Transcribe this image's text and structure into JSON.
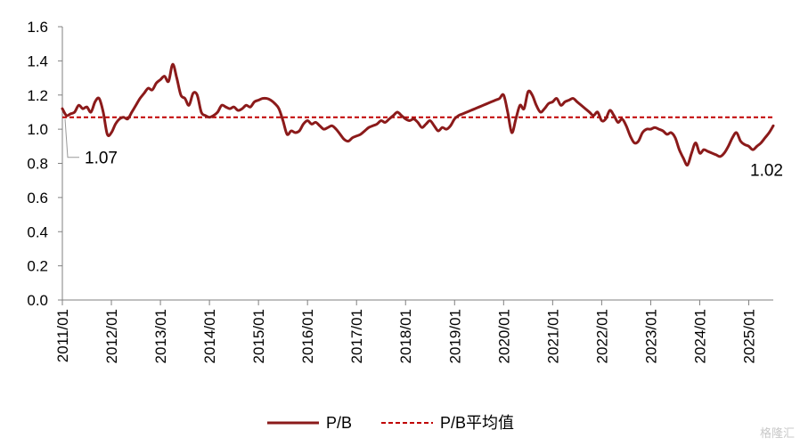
{
  "chart_data": {
    "type": "line",
    "x_start": "2011/01",
    "x_end": "2025/07",
    "xlim": [
      "2011/01",
      "2025/07"
    ],
    "ylim": [
      0,
      1.6
    ],
    "y_ticks": [
      "0.0",
      "0.2",
      "0.4",
      "0.6",
      "0.8",
      "1.0",
      "1.2",
      "1.4",
      "1.6"
    ],
    "x_ticks": [
      "2011/01",
      "2012/01",
      "2013/01",
      "2014/01",
      "2015/01",
      "2016/01",
      "2017/01",
      "2018/01",
      "2019/01",
      "2020/01",
      "2021/01",
      "2022/01",
      "2023/01",
      "2024/01",
      "2025/01"
    ],
    "grid": false,
    "legend_position": "bottom",
    "series": [
      {
        "name": "P/B",
        "color": "#8B1A1A",
        "style": "solid",
        "points": [
          [
            "2011/01",
            1.12
          ],
          [
            "2011/02",
            1.08
          ],
          [
            "2011/03",
            1.09
          ],
          [
            "2011/04",
            1.1
          ],
          [
            "2011/05",
            1.14
          ],
          [
            "2011/06",
            1.12
          ],
          [
            "2011/07",
            1.13
          ],
          [
            "2011/08",
            1.1
          ],
          [
            "2011/09",
            1.16
          ],
          [
            "2011/10",
            1.18
          ],
          [
            "2011/11",
            1.1
          ],
          [
            "2011/12",
            0.97
          ],
          [
            "2012/01",
            0.98
          ],
          [
            "2012/02",
            1.03
          ],
          [
            "2012/03",
            1.06
          ],
          [
            "2012/04",
            1.07
          ],
          [
            "2012/05",
            1.06
          ],
          [
            "2012/06",
            1.1
          ],
          [
            "2012/07",
            1.14
          ],
          [
            "2012/08",
            1.18
          ],
          [
            "2012/09",
            1.21
          ],
          [
            "2012/10",
            1.24
          ],
          [
            "2012/11",
            1.23
          ],
          [
            "2012/12",
            1.27
          ],
          [
            "2013/01",
            1.29
          ],
          [
            "2013/02",
            1.31
          ],
          [
            "2013/03",
            1.28
          ],
          [
            "2013/04",
            1.38
          ],
          [
            "2013/05",
            1.3
          ],
          [
            "2013/06",
            1.2
          ],
          [
            "2013/07",
            1.18
          ],
          [
            "2013/08",
            1.14
          ],
          [
            "2013/09",
            1.21
          ],
          [
            "2013/10",
            1.2
          ],
          [
            "2013/11",
            1.1
          ],
          [
            "2013/12",
            1.08
          ],
          [
            "2014/01",
            1.07
          ],
          [
            "2014/02",
            1.08
          ],
          [
            "2014/03",
            1.1
          ],
          [
            "2014/04",
            1.14
          ],
          [
            "2014/05",
            1.13
          ],
          [
            "2014/06",
            1.12
          ],
          [
            "2014/07",
            1.13
          ],
          [
            "2014/08",
            1.11
          ],
          [
            "2014/09",
            1.12
          ],
          [
            "2014/10",
            1.14
          ],
          [
            "2014/11",
            1.13
          ],
          [
            "2014/12",
            1.16
          ],
          [
            "2015/01",
            1.17
          ],
          [
            "2015/02",
            1.18
          ],
          [
            "2015/03",
            1.18
          ],
          [
            "2015/04",
            1.17
          ],
          [
            "2015/05",
            1.15
          ],
          [
            "2015/06",
            1.12
          ],
          [
            "2015/07",
            1.05
          ],
          [
            "2015/08",
            0.97
          ],
          [
            "2015/09",
            0.99
          ],
          [
            "2015/10",
            0.98
          ],
          [
            "2015/11",
            0.99
          ],
          [
            "2015/12",
            1.03
          ],
          [
            "2016/01",
            1.05
          ],
          [
            "2016/02",
            1.03
          ],
          [
            "2016/03",
            1.04
          ],
          [
            "2016/04",
            1.02
          ],
          [
            "2016/05",
            1.0
          ],
          [
            "2016/06",
            1.01
          ],
          [
            "2016/07",
            1.02
          ],
          [
            "2016/08",
            1.0
          ],
          [
            "2016/09",
            0.97
          ],
          [
            "2016/10",
            0.94
          ],
          [
            "2016/11",
            0.93
          ],
          [
            "2016/12",
            0.95
          ],
          [
            "2017/01",
            0.96
          ],
          [
            "2017/02",
            0.97
          ],
          [
            "2017/03",
            0.99
          ],
          [
            "2017/04",
            1.01
          ],
          [
            "2017/05",
            1.02
          ],
          [
            "2017/06",
            1.03
          ],
          [
            "2017/07",
            1.05
          ],
          [
            "2017/08",
            1.04
          ],
          [
            "2017/09",
            1.06
          ],
          [
            "2017/10",
            1.08
          ],
          [
            "2017/11",
            1.1
          ],
          [
            "2017/12",
            1.08
          ],
          [
            "2018/01",
            1.06
          ],
          [
            "2018/02",
            1.05
          ],
          [
            "2018/03",
            1.06
          ],
          [
            "2018/04",
            1.04
          ],
          [
            "2018/05",
            1.01
          ],
          [
            "2018/06",
            1.03
          ],
          [
            "2018/07",
            1.05
          ],
          [
            "2018/08",
            1.02
          ],
          [
            "2018/09",
            0.99
          ],
          [
            "2018/10",
            1.01
          ],
          [
            "2018/11",
            1.0
          ],
          [
            "2018/12",
            1.02
          ],
          [
            "2019/01",
            1.06
          ],
          [
            "2019/02",
            1.08
          ],
          [
            "2019/03",
            1.09
          ],
          [
            "2019/04",
            1.1
          ],
          [
            "2019/05",
            1.11
          ],
          [
            "2019/06",
            1.12
          ],
          [
            "2019/07",
            1.13
          ],
          [
            "2019/08",
            1.14
          ],
          [
            "2019/09",
            1.15
          ],
          [
            "2019/10",
            1.16
          ],
          [
            "2019/11",
            1.17
          ],
          [
            "2019/12",
            1.18
          ],
          [
            "2020/01",
            1.2
          ],
          [
            "2020/02",
            1.1
          ],
          [
            "2020/03",
            0.98
          ],
          [
            "2020/04",
            1.06
          ],
          [
            "2020/05",
            1.14
          ],
          [
            "2020/06",
            1.12
          ],
          [
            "2020/07",
            1.22
          ],
          [
            "2020/08",
            1.2
          ],
          [
            "2020/09",
            1.14
          ],
          [
            "2020/10",
            1.1
          ],
          [
            "2020/11",
            1.12
          ],
          [
            "2020/12",
            1.15
          ],
          [
            "2021/01",
            1.16
          ],
          [
            "2021/02",
            1.18
          ],
          [
            "2021/03",
            1.14
          ],
          [
            "2021/04",
            1.16
          ],
          [
            "2021/05",
            1.17
          ],
          [
            "2021/06",
            1.18
          ],
          [
            "2021/07",
            1.16
          ],
          [
            "2021/08",
            1.14
          ],
          [
            "2021/09",
            1.12
          ],
          [
            "2021/10",
            1.1
          ],
          [
            "2021/11",
            1.08
          ],
          [
            "2021/12",
            1.1
          ],
          [
            "2022/01",
            1.05
          ],
          [
            "2022/02",
            1.06
          ],
          [
            "2022/03",
            1.11
          ],
          [
            "2022/04",
            1.08
          ],
          [
            "2022/05",
            1.04
          ],
          [
            "2022/06",
            1.06
          ],
          [
            "2022/07",
            1.02
          ],
          [
            "2022/08",
            0.96
          ],
          [
            "2022/09",
            0.92
          ],
          [
            "2022/10",
            0.93
          ],
          [
            "2022/11",
            0.98
          ],
          [
            "2022/12",
            1.0
          ],
          [
            "2023/01",
            1.0
          ],
          [
            "2023/02",
            1.01
          ],
          [
            "2023/03",
            1.0
          ],
          [
            "2023/04",
            0.99
          ],
          [
            "2023/05",
            0.97
          ],
          [
            "2023/06",
            0.98
          ],
          [
            "2023/07",
            0.95
          ],
          [
            "2023/08",
            0.88
          ],
          [
            "2023/09",
            0.83
          ],
          [
            "2023/10",
            0.79
          ],
          [
            "2023/11",
            0.86
          ],
          [
            "2023/12",
            0.92
          ],
          [
            "2024/01",
            0.86
          ],
          [
            "2024/02",
            0.88
          ],
          [
            "2024/03",
            0.87
          ],
          [
            "2024/04",
            0.86
          ],
          [
            "2024/05",
            0.85
          ],
          [
            "2024/06",
            0.84
          ],
          [
            "2024/07",
            0.86
          ],
          [
            "2024/08",
            0.9
          ],
          [
            "2024/09",
            0.95
          ],
          [
            "2024/10",
            0.98
          ],
          [
            "2024/11",
            0.93
          ],
          [
            "2024/12",
            0.91
          ],
          [
            "2025/01",
            0.9
          ],
          [
            "2025/02",
            0.88
          ],
          [
            "2025/03",
            0.9
          ],
          [
            "2025/04",
            0.92
          ],
          [
            "2025/05",
            0.95
          ],
          [
            "2025/06",
            0.98
          ],
          [
            "2025/07",
            1.02
          ]
        ]
      },
      {
        "name": "P/B平均值",
        "color": "#C00000",
        "style": "dashed",
        "value": 1.07
      }
    ],
    "annotations": [
      {
        "label": "1.07",
        "x": "2011/01",
        "y": 1.07,
        "placement": "lower-right of start, with leader line"
      },
      {
        "label": "1.02",
        "x": "2025/07",
        "y": 1.02,
        "placement": "below end of line"
      }
    ]
  },
  "watermark": "格隆汇"
}
